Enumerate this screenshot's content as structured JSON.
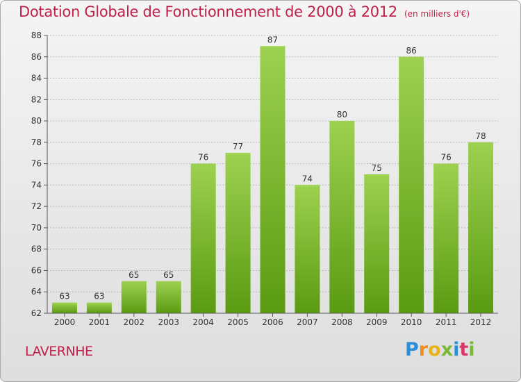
{
  "header": {
    "title": "Dotation Globale de Fonctionnement de 2000 à 2012",
    "subtitle": "(en milliers d'€)"
  },
  "footer": {
    "commune": "LAVERNHE",
    "logo": "Proxiti"
  },
  "colors": {
    "accent": "#c0204a",
    "bar_light": "#9dd150",
    "bar_dark": "#5a9b12",
    "grid": "#bbbbbb"
  },
  "chart_data": {
    "type": "bar",
    "title": "Dotation Globale de Fonctionnement de 2000 à 2012",
    "subtitle": "(en milliers d'€)",
    "xlabel": "",
    "ylabel": "",
    "categories": [
      "2000",
      "2001",
      "2002",
      "2003",
      "2004",
      "2005",
      "2006",
      "2007",
      "2008",
      "2009",
      "2010",
      "2011",
      "2012"
    ],
    "values": [
      63,
      63,
      65,
      65,
      76,
      77,
      87,
      74,
      80,
      75,
      86,
      76,
      78
    ],
    "ylim": [
      62,
      88
    ],
    "yticks": [
      62,
      64,
      66,
      68,
      70,
      72,
      74,
      76,
      78,
      80,
      82,
      84,
      86,
      88
    ],
    "grid": true,
    "data_labels": true
  }
}
